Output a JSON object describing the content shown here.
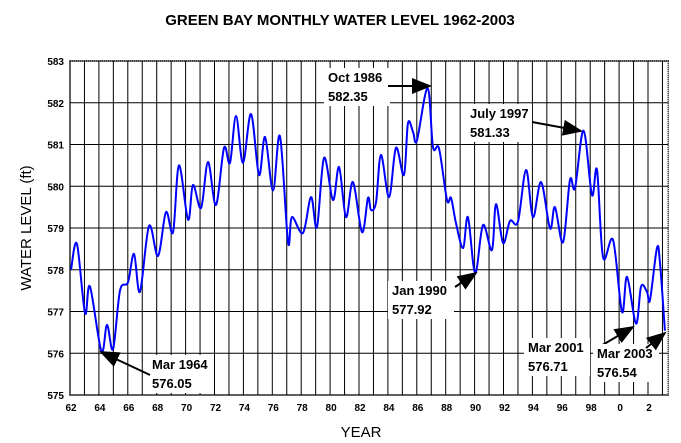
{
  "chart_data": {
    "type": "line",
    "title": "GREEN BAY MONTHLY WATER LEVEL 1962-2003",
    "xlabel": "YEAR",
    "ylabel": "WATER LEVEL (ft)",
    "xlim": [
      1962,
      2003.4
    ],
    "ylim": [
      575,
      583
    ],
    "grid": true,
    "line_color": "#0000ff",
    "x_ticks": [
      1962,
      1964,
      1966,
      1968,
      1970,
      1972,
      1974,
      1976,
      1978,
      1980,
      1982,
      1984,
      1986,
      1988,
      1990,
      1992,
      1994,
      1996,
      1998,
      2000,
      2002
    ],
    "x_tick_labels": [
      "62",
      "64",
      "66",
      "68",
      "70",
      "72",
      "74",
      "76",
      "78",
      "80",
      "82",
      "84",
      "86",
      "88",
      "90",
      "92",
      "94",
      "96",
      "98",
      "0",
      "2"
    ],
    "y_ticks": [
      575,
      576,
      577,
      578,
      579,
      580,
      581,
      582,
      583
    ],
    "y_tick_labels": [
      "575",
      "576",
      "577",
      "578",
      "579",
      "580",
      "581",
      "582",
      "583"
    ],
    "series": [
      {
        "points": [
          [
            1962.07,
            578.0
          ],
          [
            1962.48,
            578.62
          ],
          [
            1963.04,
            576.96
          ],
          [
            1963.38,
            577.6
          ],
          [
            1964.17,
            576.05
          ],
          [
            1964.56,
            576.68
          ],
          [
            1964.98,
            576.1
          ],
          [
            1965.46,
            577.5
          ],
          [
            1966.01,
            577.7
          ],
          [
            1966.43,
            578.38
          ],
          [
            1966.84,
            577.47
          ],
          [
            1967.47,
            579.05
          ],
          [
            1968.09,
            578.33
          ],
          [
            1968.64,
            579.38
          ],
          [
            1969.13,
            578.9
          ],
          [
            1969.54,
            580.5
          ],
          [
            1970.17,
            579.2
          ],
          [
            1970.51,
            580.03
          ],
          [
            1971.07,
            579.48
          ],
          [
            1971.55,
            580.58
          ],
          [
            1972.1,
            579.55
          ],
          [
            1972.66,
            580.92
          ],
          [
            1973.07,
            580.56
          ],
          [
            1973.49,
            581.68
          ],
          [
            1973.97,
            580.56
          ],
          [
            1974.53,
            581.73
          ],
          [
            1975.08,
            580.27
          ],
          [
            1975.5,
            581.18
          ],
          [
            1976.05,
            579.9
          ],
          [
            1976.53,
            581.2
          ],
          [
            1977.09,
            578.66
          ],
          [
            1977.36,
            579.26
          ],
          [
            1978.12,
            578.88
          ],
          [
            1978.68,
            579.74
          ],
          [
            1979.09,
            579.02
          ],
          [
            1979.58,
            580.68
          ],
          [
            1980.2,
            579.67
          ],
          [
            1980.62,
            580.46
          ],
          [
            1981.1,
            579.26
          ],
          [
            1981.58,
            580.1
          ],
          [
            1982.21,
            578.9
          ],
          [
            1982.62,
            579.72
          ],
          [
            1982.83,
            579.43
          ],
          [
            1983.18,
            579.62
          ],
          [
            1983.52,
            580.75
          ],
          [
            1984.08,
            579.74
          ],
          [
            1984.56,
            580.92
          ],
          [
            1985.11,
            580.27
          ],
          [
            1985.39,
            581.51
          ],
          [
            1985.74,
            581.3
          ],
          [
            1986.01,
            581.1
          ],
          [
            1986.75,
            582.35
          ],
          [
            1987.12,
            580.94
          ],
          [
            1987.54,
            580.9
          ],
          [
            1988.09,
            579.67
          ],
          [
            1988.37,
            579.72
          ],
          [
            1988.71,
            579.12
          ],
          [
            1989.2,
            578.52
          ],
          [
            1989.54,
            579.26
          ],
          [
            1990.04,
            577.92
          ],
          [
            1990.58,
            579.07
          ],
          [
            1991.2,
            578.47
          ],
          [
            1991.48,
            579.57
          ],
          [
            1991.97,
            578.64
          ],
          [
            1992.45,
            579.17
          ],
          [
            1993.0,
            579.15
          ],
          [
            1993.56,
            580.39
          ],
          [
            1994.04,
            579.26
          ],
          [
            1994.6,
            580.1
          ],
          [
            1995.22,
            578.99
          ],
          [
            1995.56,
            579.5
          ],
          [
            1996.12,
            578.66
          ],
          [
            1996.6,
            580.15
          ],
          [
            1996.95,
            579.96
          ],
          [
            1997.54,
            581.33
          ],
          [
            1998.12,
            579.79
          ],
          [
            1998.47,
            580.39
          ],
          [
            1998.89,
            578.3
          ],
          [
            1999.58,
            578.71
          ],
          [
            2000.2,
            576.99
          ],
          [
            2000.55,
            577.83
          ],
          [
            2001.17,
            576.71
          ],
          [
            2001.52,
            577.6
          ],
          [
            2001.93,
            577.47
          ],
          [
            2002.14,
            577.28
          ],
          [
            2002.62,
            578.52
          ],
          [
            2002.83,
            578.16
          ],
          [
            2003.17,
            576.54
          ]
        ]
      }
    ],
    "annotations": [
      {
        "date": "Oct 1986",
        "value": "582.35"
      },
      {
        "date": "July 1997",
        "value": "581.33"
      },
      {
        "date": "Jan 1990",
        "value": "577.92"
      },
      {
        "date": "Mar 1964",
        "value": "576.05"
      },
      {
        "date": "Mar 2001",
        "value": "576.71"
      },
      {
        "date": "Mar 2003",
        "value": "576.54"
      }
    ]
  }
}
